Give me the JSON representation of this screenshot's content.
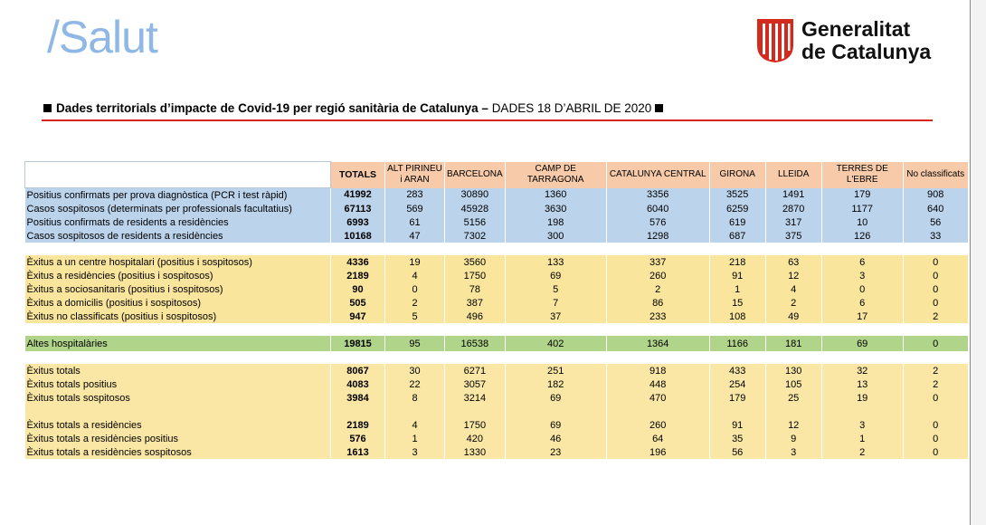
{
  "brand": "/Salut",
  "government": {
    "line1": "Generalitat",
    "line2": "de Catalunya"
  },
  "heading": {
    "bold": "Dades territorials d’impacte de Covid-19 per regió sanitària de Catalunya –",
    "date": "DADES 18 D’ABRIL DE 2020"
  },
  "columns": [
    "",
    "TOTALS",
    "ALT PIRINEU i ARAN",
    "BARCELONA",
    "CAMP DE TARRAGONA",
    "CATALUNYA CENTRAL",
    "GIRONA",
    "LLEIDA",
    "TERRES DE L'EBRE",
    "No classificats"
  ],
  "rows": [
    {
      "style": "blue",
      "cells": [
        "Positius confirmats per prova diagnòstica (PCR i test ràpid)",
        "41992",
        "283",
        "30890",
        "1360",
        "3356",
        "3525",
        "1491",
        "179",
        "908"
      ]
    },
    {
      "style": "blue",
      "cells": [
        "Casos sospitosos (determinats per professionals facultatius)",
        "67113",
        "569",
        "45928",
        "3630",
        "6040",
        "6259",
        "2870",
        "1177",
        "640"
      ]
    },
    {
      "style": "blue",
      "cells": [
        "Positius confirmats de residents a residències",
        "6993",
        "61",
        "5156",
        "198",
        "576",
        "619",
        "317",
        "10",
        "56"
      ]
    },
    {
      "style": "blue",
      "cells": [
        "Casos sospitosos de residents a residències",
        "10168",
        "47",
        "7302",
        "300",
        "1298",
        "687",
        "375",
        "126",
        "33"
      ]
    },
    {
      "style": "blank",
      "cells": [
        "",
        "",
        "",
        "",
        "",
        "",
        "",
        "",
        "",
        ""
      ]
    },
    {
      "style": "yellow",
      "cells": [
        "Èxitus a un centre hospitalari (positius i sospitosos)",
        "4336",
        "19",
        "3560",
        "133",
        "337",
        "218",
        "63",
        "6",
        "0"
      ]
    },
    {
      "style": "yellow",
      "cells": [
        "Èxitus a residències (positius i sospitosos)",
        "2189",
        "4",
        "1750",
        "69",
        "260",
        "91",
        "12",
        "3",
        "0"
      ]
    },
    {
      "style": "yellow",
      "cells": [
        "Èxitus a sociosanitaris (positius i sospitosos)",
        "90",
        "0",
        "78",
        "5",
        "2",
        "1",
        "4",
        "0",
        "0"
      ]
    },
    {
      "style": "yellow",
      "cells": [
        "Èxitus a domicilis (positius i sospitosos)",
        "505",
        "2",
        "387",
        "7",
        "86",
        "15",
        "2",
        "6",
        "0"
      ]
    },
    {
      "style": "yellow",
      "cells": [
        "Èxitus no classificats (positius i sospitosos)",
        "947",
        "5",
        "496",
        "37",
        "233",
        "108",
        "49",
        "17",
        "2"
      ]
    },
    {
      "style": "blank",
      "cells": [
        "",
        "",
        "",
        "",
        "",
        "",
        "",
        "",
        "",
        ""
      ]
    },
    {
      "style": "green",
      "cells": [
        "Altes hospitalàries",
        "19815",
        "95",
        "16538",
        "402",
        "1364",
        "1166",
        "181",
        "69",
        "0"
      ]
    },
    {
      "style": "blank",
      "cells": [
        "",
        "",
        "",
        "",
        "",
        "",
        "",
        "",
        "",
        ""
      ]
    },
    {
      "style": "pale",
      "cells": [
        "Èxitus totals",
        "8067",
        "30",
        "6271",
        "251",
        "918",
        "433",
        "130",
        "32",
        "2"
      ]
    },
    {
      "style": "pale",
      "cells": [
        "Èxitus totals positius",
        "4083",
        "22",
        "3057",
        "182",
        "448",
        "254",
        "105",
        "13",
        "2"
      ]
    },
    {
      "style": "pale",
      "cells": [
        "Èxitus totals sospitosos",
        "3984",
        "8",
        "3214",
        "69",
        "470",
        "179",
        "25",
        "19",
        "0"
      ]
    },
    {
      "style": "pale",
      "cells": [
        "",
        "",
        "",
        "",
        "",
        "",
        "",
        "",
        "",
        ""
      ]
    },
    {
      "style": "pale",
      "cells": [
        "Èxitus totals a residències",
        "2189",
        "4",
        "1750",
        "69",
        "260",
        "91",
        "12",
        "3",
        "0"
      ]
    },
    {
      "style": "pale",
      "cells": [
        "Èxitus totals a residències positius",
        "576",
        "1",
        "420",
        "46",
        "64",
        "35",
        "9",
        "1",
        "0"
      ]
    },
    {
      "style": "pale",
      "cells": [
        "Èxitus totals a residències sospitosos",
        "1613",
        "3",
        "1330",
        "23",
        "196",
        "56",
        "3",
        "2",
        "0"
      ]
    }
  ]
}
